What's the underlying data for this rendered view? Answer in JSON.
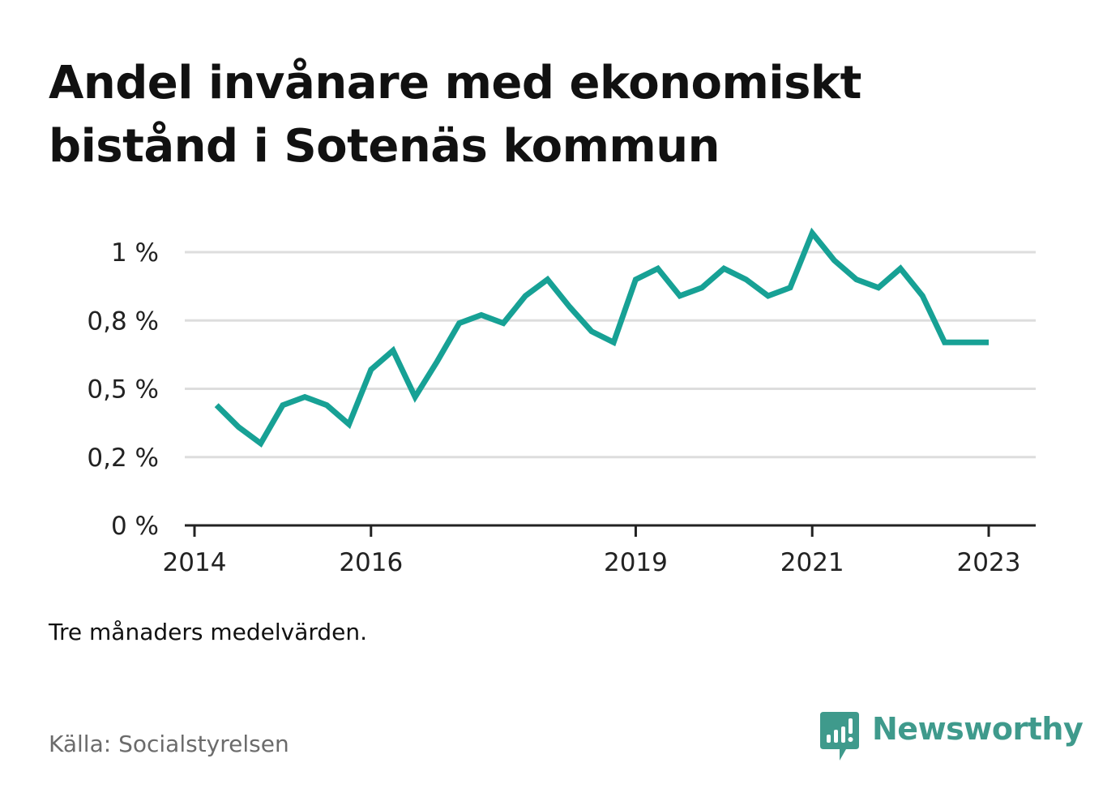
{
  "title": "Andel invånare med ekonomiskt bistånd i Sotenäs kommun",
  "note": "Tre månaders medelvärden.",
  "source": "Källa: Socialstyrelsen",
  "brand": {
    "name": "Newsworthy",
    "icon": "newsworthy-logo-icon",
    "color": "#3f9a8c"
  },
  "colors": {
    "line": "#17a195",
    "grid": "#dddddd",
    "axis": "#222222"
  },
  "chart_data": {
    "type": "line",
    "title": "Andel invånare med ekonomiskt bistånd i Sotenäs kommun",
    "xlabel": "",
    "ylabel": "",
    "x_ticks": [
      "2014",
      "2016",
      "2019",
      "2021",
      "2023"
    ],
    "y_ticks": [
      "0 %",
      "0,2 %",
      "0,5 %",
      "0,8 %",
      "1 %"
    ],
    "ylim": [
      0,
      1.0
    ],
    "grid": true,
    "series": [
      {
        "x": [
          "2014-04",
          "2014-07",
          "2014-10",
          "2015-01",
          "2015-04",
          "2015-07",
          "2015-10",
          "2016-01",
          "2016-04",
          "2016-07",
          "2016-10",
          "2017-01",
          "2017-04",
          "2017-07",
          "2017-10",
          "2018-01",
          "2018-04",
          "2018-07",
          "2018-10",
          "2019-01",
          "2019-04",
          "2019-07",
          "2019-10",
          "2020-01",
          "2020-04",
          "2020-07",
          "2020-10",
          "2021-01",
          "2021-04",
          "2021-07",
          "2021-10",
          "2022-01",
          "2022-04",
          "2022-07",
          "2022-10",
          "2023-01"
        ],
        "values": [
          0.44,
          0.36,
          0.3,
          0.44,
          0.47,
          0.44,
          0.37,
          0.57,
          0.64,
          0.47,
          0.6,
          0.74,
          0.77,
          0.74,
          0.84,
          0.9,
          0.8,
          0.71,
          0.67,
          0.9,
          0.94,
          0.84,
          0.87,
          0.94,
          0.9,
          0.84,
          0.87,
          1.07,
          0.97,
          0.9,
          0.87,
          0.94,
          0.84,
          0.67,
          0.67,
          0.67
        ]
      }
    ]
  }
}
